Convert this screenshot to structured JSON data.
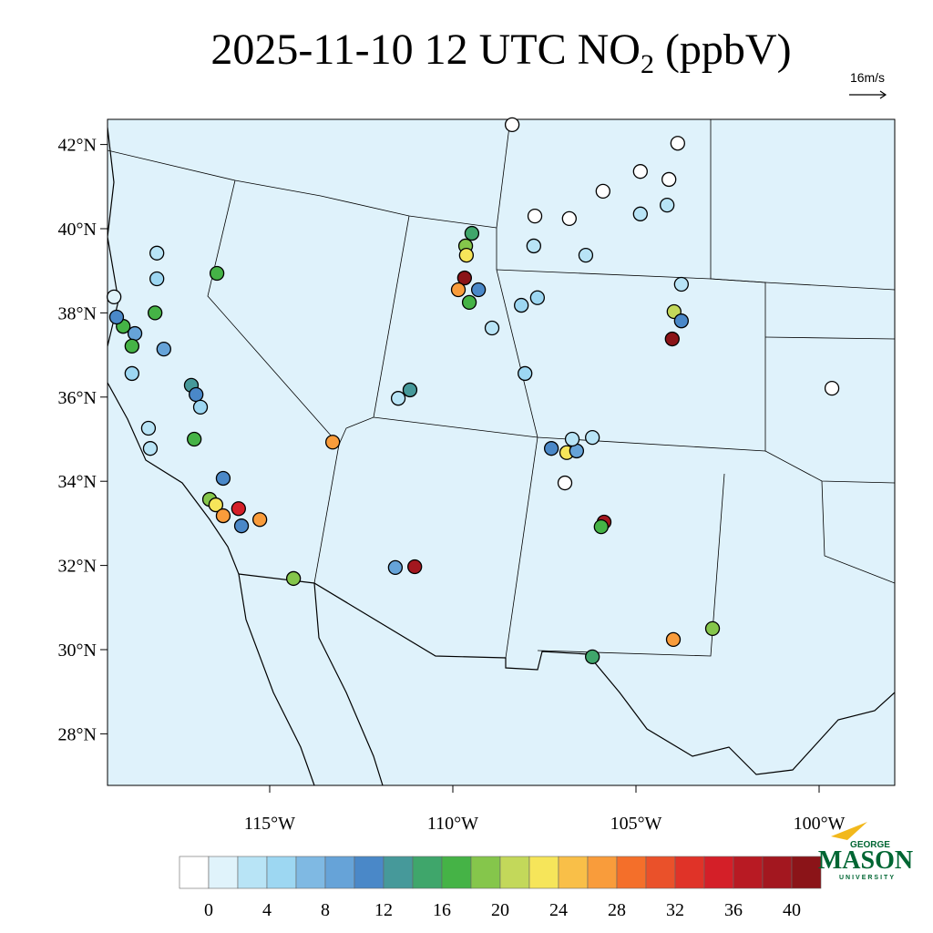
{
  "title": {
    "main": "2025-11-10 12 UTC NO",
    "subscript": "2",
    "suffix": " (ppbV)"
  },
  "wind_reference": "16m/s",
  "map": {
    "lat_ticks": [
      {
        "value": 42,
        "label": "42°N"
      },
      {
        "value": 40,
        "label": "40°N"
      },
      {
        "value": 38,
        "label": "38°N"
      },
      {
        "value": 36,
        "label": "36°N"
      },
      {
        "value": 34,
        "label": "34°N"
      },
      {
        "value": 32,
        "label": "32°N"
      },
      {
        "value": 30,
        "label": "30°N"
      },
      {
        "value": 28,
        "label": "28°N"
      }
    ],
    "lon_ticks": [
      {
        "value": -115,
        "label": "115°W"
      },
      {
        "value": -110,
        "label": "110°W"
      },
      {
        "value": -105,
        "label": "105°W"
      },
      {
        "value": -100,
        "label": "100°W"
      }
    ],
    "stations": [
      {
        "lon": -119.25,
        "lat": 38.38,
        "value": 1
      },
      {
        "lon": -119.0,
        "lat": 37.68,
        "value": 17
      },
      {
        "lon": -119.18,
        "lat": 37.9,
        "value": 11
      },
      {
        "lon": -118.68,
        "lat": 37.51,
        "value": 9
      },
      {
        "lon": -118.76,
        "lat": 37.21,
        "value": 17
      },
      {
        "lon": -118.08,
        "lat": 39.42,
        "value": 3
      },
      {
        "lon": -118.08,
        "lat": 38.81,
        "value": 5
      },
      {
        "lon": -118.13,
        "lat": 38.0,
        "value": 17
      },
      {
        "lon": -117.89,
        "lat": 37.14,
        "value": 9
      },
      {
        "lon": -118.76,
        "lat": 36.56,
        "value": 4
      },
      {
        "lon": -117.14,
        "lat": 36.28,
        "value": 13
      },
      {
        "lon": -117.01,
        "lat": 36.06,
        "value": 10
      },
      {
        "lon": -116.89,
        "lat": 35.76,
        "value": 4
      },
      {
        "lon": -118.31,
        "lat": 35.26,
        "value": 3
      },
      {
        "lon": -118.26,
        "lat": 34.78,
        "value": 3
      },
      {
        "lon": -117.06,
        "lat": 35.0,
        "value": 17
      },
      {
        "lon": -116.44,
        "lat": 38.94,
        "value": 17
      },
      {
        "lon": -116.27,
        "lat": 34.07,
        "value": 10
      },
      {
        "lon": -116.64,
        "lat": 33.57,
        "value": 18
      },
      {
        "lon": -116.47,
        "lat": 33.44,
        "value": 23
      },
      {
        "lon": -116.27,
        "lat": 33.18,
        "value": 27
      },
      {
        "lon": -115.85,
        "lat": 33.35,
        "value": 35
      },
      {
        "lon": -115.77,
        "lat": 32.94,
        "value": 10
      },
      {
        "lon": -115.27,
        "lat": 33.09,
        "value": 26
      },
      {
        "lon": -114.35,
        "lat": 31.69,
        "value": 19
      },
      {
        "lon": -113.28,
        "lat": 34.93,
        "value": 27
      },
      {
        "lon": -111.49,
        "lat": 35.97,
        "value": 3
      },
      {
        "lon": -111.17,
        "lat": 36.17,
        "value": 13
      },
      {
        "lon": -111.04,
        "lat": 31.97,
        "value": 38
      },
      {
        "lon": -111.57,
        "lat": 31.95,
        "value": 9
      },
      {
        "lon": -109.68,
        "lat": 38.83,
        "value": 40
      },
      {
        "lon": -109.85,
        "lat": 38.55,
        "value": 26
      },
      {
        "lon": -109.65,
        "lat": 39.59,
        "value": 19
      },
      {
        "lon": -109.48,
        "lat": 39.89,
        "value": 15
      },
      {
        "lon": -109.63,
        "lat": 39.37,
        "value": 22
      },
      {
        "lon": -109.55,
        "lat": 38.25,
        "value": 16
      },
      {
        "lon": -109.3,
        "lat": 38.55,
        "value": 10
      },
      {
        "lon": -108.93,
        "lat": 37.64,
        "value": 3
      },
      {
        "lon": -108.13,
        "lat": 38.18,
        "value": 4
      },
      {
        "lon": -107.69,
        "lat": 38.36,
        "value": 4
      },
      {
        "lon": -108.03,
        "lat": 36.56,
        "value": 4
      },
      {
        "lon": -108.38,
        "lat": 42.47,
        "value": -1
      },
      {
        "lon": -107.76,
        "lat": 40.3,
        "value": -1
      },
      {
        "lon": -107.79,
        "lat": 39.59,
        "value": 2
      },
      {
        "lon": -106.82,
        "lat": 40.24,
        "value": -1
      },
      {
        "lon": -105.9,
        "lat": 40.89,
        "value": -1
      },
      {
        "lon": -106.37,
        "lat": 39.37,
        "value": 2
      },
      {
        "lon": -104.88,
        "lat": 41.36,
        "value": -1
      },
      {
        "lon": -103.86,
        "lat": 42.03,
        "value": -1
      },
      {
        "lon": -104.1,
        "lat": 41.17,
        "value": -1
      },
      {
        "lon": -104.88,
        "lat": 40.35,
        "value": 2
      },
      {
        "lon": -104.15,
        "lat": 40.56,
        "value": 2
      },
      {
        "lon": -103.76,
        "lat": 38.68,
        "value": 3
      },
      {
        "lon": -103.96,
        "lat": 38.03,
        "value": 20
      },
      {
        "lon": -103.76,
        "lat": 37.81,
        "value": 10
      },
      {
        "lon": -104.01,
        "lat": 37.38,
        "value": 40
      },
      {
        "lon": -99.65,
        "lat": 36.21,
        "value": -1
      },
      {
        "lon": -107.31,
        "lat": 34.78,
        "value": 10
      },
      {
        "lon": -106.89,
        "lat": 34.68,
        "value": 23
      },
      {
        "lon": -106.62,
        "lat": 34.72,
        "value": 9
      },
      {
        "lon": -106.74,
        "lat": 35.0,
        "value": 3
      },
      {
        "lon": -106.19,
        "lat": 35.04,
        "value": 3
      },
      {
        "lon": -106.94,
        "lat": 33.96,
        "value": -1
      },
      {
        "lon": -105.87,
        "lat": 33.03,
        "value": 38
      },
      {
        "lon": -105.95,
        "lat": 32.92,
        "value": 17
      },
      {
        "lon": -103.98,
        "lat": 30.24,
        "value": 26
      },
      {
        "lon": -102.91,
        "lat": 30.5,
        "value": 19
      },
      {
        "lon": -106.19,
        "lat": 29.83,
        "value": 15
      }
    ]
  },
  "colorbar": {
    "levels": [
      0,
      2,
      4,
      6,
      8,
      10,
      12,
      14,
      16,
      18,
      20,
      22,
      24,
      26,
      28,
      30,
      32,
      34,
      36,
      38,
      40
    ],
    "colors": [
      "#ffffff",
      "#e0f3fb",
      "#b8e4f6",
      "#9dd7f2",
      "#7fb9e3",
      "#66a3d8",
      "#4a88c8",
      "#46999a",
      "#3fa66b",
      "#45b346",
      "#85c64b",
      "#c3d85a",
      "#f6e55a",
      "#f9bf48",
      "#f99c3b",
      "#f46f2a",
      "#ea512a",
      "#e03328",
      "#d41f28",
      "#b81a23",
      "#a3171f",
      "#8b1418"
    ],
    "ticks": [
      0,
      4,
      8,
      12,
      16,
      20,
      24,
      28,
      32,
      36,
      40
    ]
  },
  "logo": {
    "line1": "GEORGE",
    "line2": "MASON",
    "line3": "UNIVERSITY"
  }
}
